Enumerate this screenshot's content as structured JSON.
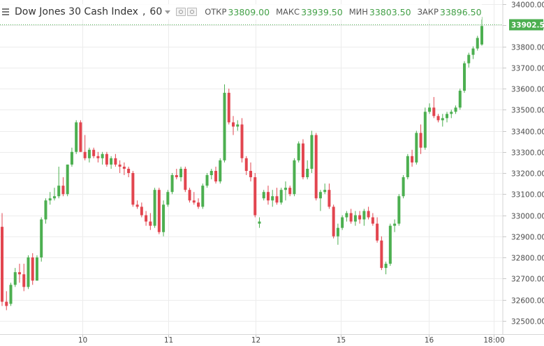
{
  "legend": {
    "title": "Dow Jones 30 Cash Index",
    "interval": "60",
    "open_label": "ОТКР",
    "open_value": "33809.00",
    "high_label": "МАКС",
    "high_value": "33939.50",
    "low_label": "МИН",
    "low_value": "33803.50",
    "close_label": "ЗАКР",
    "close_value": "33896.50"
  },
  "price_tag": "33902.50",
  "colors": {
    "up": "#4caf50",
    "down": "#e2454f",
    "grid": "#ececec",
    "axis": "#d6d6d6",
    "tag": "#4caf50",
    "value": "#43a047"
  },
  "chart_data": {
    "type": "candlestick",
    "y_ticks": [
      "34000.00",
      "33900.00",
      "33800.00",
      "33700.00",
      "33600.00",
      "33500.00",
      "33400.00",
      "33300.00",
      "33200.00",
      "33100.00",
      "33000.00",
      "32900.00",
      "32800.00",
      "32700.00",
      "32600.00",
      "32500.00"
    ],
    "x_ticks": [
      "10",
      "11",
      "12",
      "15",
      "16",
      "18:00"
    ],
    "ylim": [
      32470,
      34030
    ],
    "last_price": 33902.5,
    "candles": [
      [
        32945,
        33010,
        32570,
        32590
      ],
      [
        32590,
        32640,
        32550,
        32570
      ],
      [
        32580,
        32680,
        32570,
        32670
      ],
      [
        32670,
        32750,
        32660,
        32730
      ],
      [
        32730,
        32770,
        32680,
        32720
      ],
      [
        32720,
        32770,
        32640,
        32660
      ],
      [
        32660,
        32810,
        32650,
        32800
      ],
      [
        32800,
        32820,
        32670,
        32690
      ],
      [
        32690,
        32810,
        32690,
        32800
      ],
      [
        32800,
        32990,
        32780,
        32980
      ],
      [
        32980,
        33080,
        32960,
        33070
      ],
      [
        33070,
        33110,
        33050,
        33080
      ],
      [
        33080,
        33130,
        33070,
        33090
      ],
      [
        33090,
        33230,
        33080,
        33140
      ],
      [
        33140,
        33180,
        33090,
        33100
      ],
      [
        33100,
        33240,
        33090,
        33240
      ],
      [
        33240,
        33320,
        33230,
        33300
      ],
      [
        33300,
        33450,
        33290,
        33440
      ],
      [
        33440,
        33450,
        33300,
        33300
      ],
      [
        33300,
        33380,
        33260,
        33270
      ],
      [
        33270,
        33320,
        33250,
        33310
      ],
      [
        33310,
        33320,
        33270,
        33280
      ],
      [
        33280,
        33300,
        33250,
        33270
      ],
      [
        33270,
        33300,
        33240,
        33290
      ],
      [
        33290,
        33300,
        33230,
        33240
      ],
      [
        33240,
        33280,
        33220,
        33270
      ],
      [
        33270,
        33290,
        33230,
        33240
      ],
      [
        33240,
        33260,
        33200,
        33230
      ],
      [
        33230,
        33250,
        33190,
        33220
      ],
      [
        33220,
        33230,
        33180,
        33200
      ],
      [
        33200,
        33210,
        33040,
        33050
      ],
      [
        33050,
        33070,
        33030,
        33040
      ],
      [
        33040,
        33060,
        32990,
        33000
      ],
      [
        33000,
        33020,
        32950,
        32970
      ],
      [
        32970,
        33010,
        32930,
        32950
      ],
      [
        32950,
        33130,
        32940,
        33120
      ],
      [
        33120,
        33130,
        32910,
        32920
      ],
      [
        32920,
        33070,
        32900,
        33050
      ],
      [
        33050,
        33120,
        33040,
        33110
      ],
      [
        33110,
        33200,
        33100,
        33190
      ],
      [
        33190,
        33220,
        33170,
        33180
      ],
      [
        33180,
        33230,
        33160,
        33220
      ],
      [
        33220,
        33230,
        33110,
        33120
      ],
      [
        33120,
        33130,
        33060,
        33070
      ],
      [
        33070,
        33110,
        33050,
        33060
      ],
      [
        33060,
        33080,
        33030,
        33040
      ],
      [
        33040,
        33150,
        33030,
        33140
      ],
      [
        33140,
        33200,
        33130,
        33190
      ],
      [
        33190,
        33220,
        33170,
        33210
      ],
      [
        33210,
        33230,
        33150,
        33160
      ],
      [
        33160,
        33270,
        33150,
        33260
      ],
      [
        33260,
        33620,
        33250,
        33580
      ],
      [
        33580,
        33600,
        33430,
        33440
      ],
      [
        33440,
        33470,
        33380,
        33420
      ],
      [
        33420,
        33450,
        33400,
        33430
      ],
      [
        33430,
        33460,
        33250,
        33270
      ],
      [
        33270,
        33280,
        33190,
        33210
      ],
      [
        33210,
        33250,
        33160,
        33180
      ],
      [
        33180,
        33200,
        32990,
        33000
      ],
      [
        32960,
        32990,
        32940,
        32970
      ],
      [
        33080,
        33120,
        33070,
        33110
      ],
      [
        33110,
        33140,
        33050,
        33070
      ],
      [
        33070,
        33120,
        33040,
        33090
      ],
      [
        33090,
        33130,
        33050,
        33060
      ],
      [
        33060,
        33130,
        33050,
        33120
      ],
      [
        33120,
        33160,
        33070,
        33130
      ],
      [
        33130,
        33140,
        33090,
        33100
      ],
      [
        33100,
        33270,
        33090,
        33260
      ],
      [
        33260,
        33350,
        33250,
        33340
      ],
      [
        33340,
        33360,
        33170,
        33180
      ],
      [
        33180,
        33260,
        33170,
        33220
      ],
      [
        33220,
        33400,
        33200,
        33380
      ],
      [
        33380,
        33390,
        33070,
        33080
      ],
      [
        33080,
        33120,
        33020,
        33110
      ],
      [
        33110,
        33150,
        33100,
        33120
      ],
      [
        33120,
        33150,
        33030,
        33040
      ],
      [
        33040,
        33050,
        32890,
        32900
      ],
      [
        32900,
        32960,
        32860,
        32940
      ],
      [
        32940,
        33000,
        32930,
        32990
      ],
      [
        32990,
        33020,
        32970,
        33010
      ],
      [
        33010,
        33030,
        32960,
        32970
      ],
      [
        32970,
        33020,
        32950,
        33000
      ],
      [
        33000,
        33020,
        32960,
        32980
      ],
      [
        32980,
        33030,
        32950,
        33020
      ],
      [
        33020,
        33040,
        32980,
        32990
      ],
      [
        32990,
        33010,
        32950,
        32960
      ],
      [
        32960,
        32990,
        32870,
        32880
      ],
      [
        32880,
        32900,
        32740,
        32750
      ],
      [
        32750,
        32780,
        32720,
        32770
      ],
      [
        32770,
        32960,
        32760,
        32950
      ],
      [
        32950,
        32980,
        32920,
        32960
      ],
      [
        32960,
        33100,
        32950,
        33090
      ],
      [
        33090,
        33190,
        33080,
        33180
      ],
      [
        33180,
        33290,
        33170,
        33280
      ],
      [
        33280,
        33310,
        33230,
        33250
      ],
      [
        33250,
        33400,
        33240,
        33390
      ],
      [
        33390,
        33430,
        33290,
        33320
      ],
      [
        33320,
        33510,
        33310,
        33490
      ],
      [
        33490,
        33530,
        33480,
        33510
      ],
      [
        33510,
        33560,
        33460,
        33470
      ],
      [
        33470,
        33480,
        33440,
        33450
      ],
      [
        33450,
        33480,
        33420,
        33460
      ],
      [
        33460,
        33490,
        33440,
        33480
      ],
      [
        33480,
        33500,
        33460,
        33490
      ],
      [
        33490,
        33520,
        33480,
        33510
      ],
      [
        33510,
        33600,
        33500,
        33590
      ],
      [
        33590,
        33730,
        33580,
        33720
      ],
      [
        33720,
        33770,
        33700,
        33760
      ],
      [
        33760,
        33800,
        33740,
        33790
      ],
      [
        33790,
        33850,
        33780,
        33840
      ],
      [
        33809,
        33939.5,
        33803.5,
        33896.5
      ]
    ]
  }
}
